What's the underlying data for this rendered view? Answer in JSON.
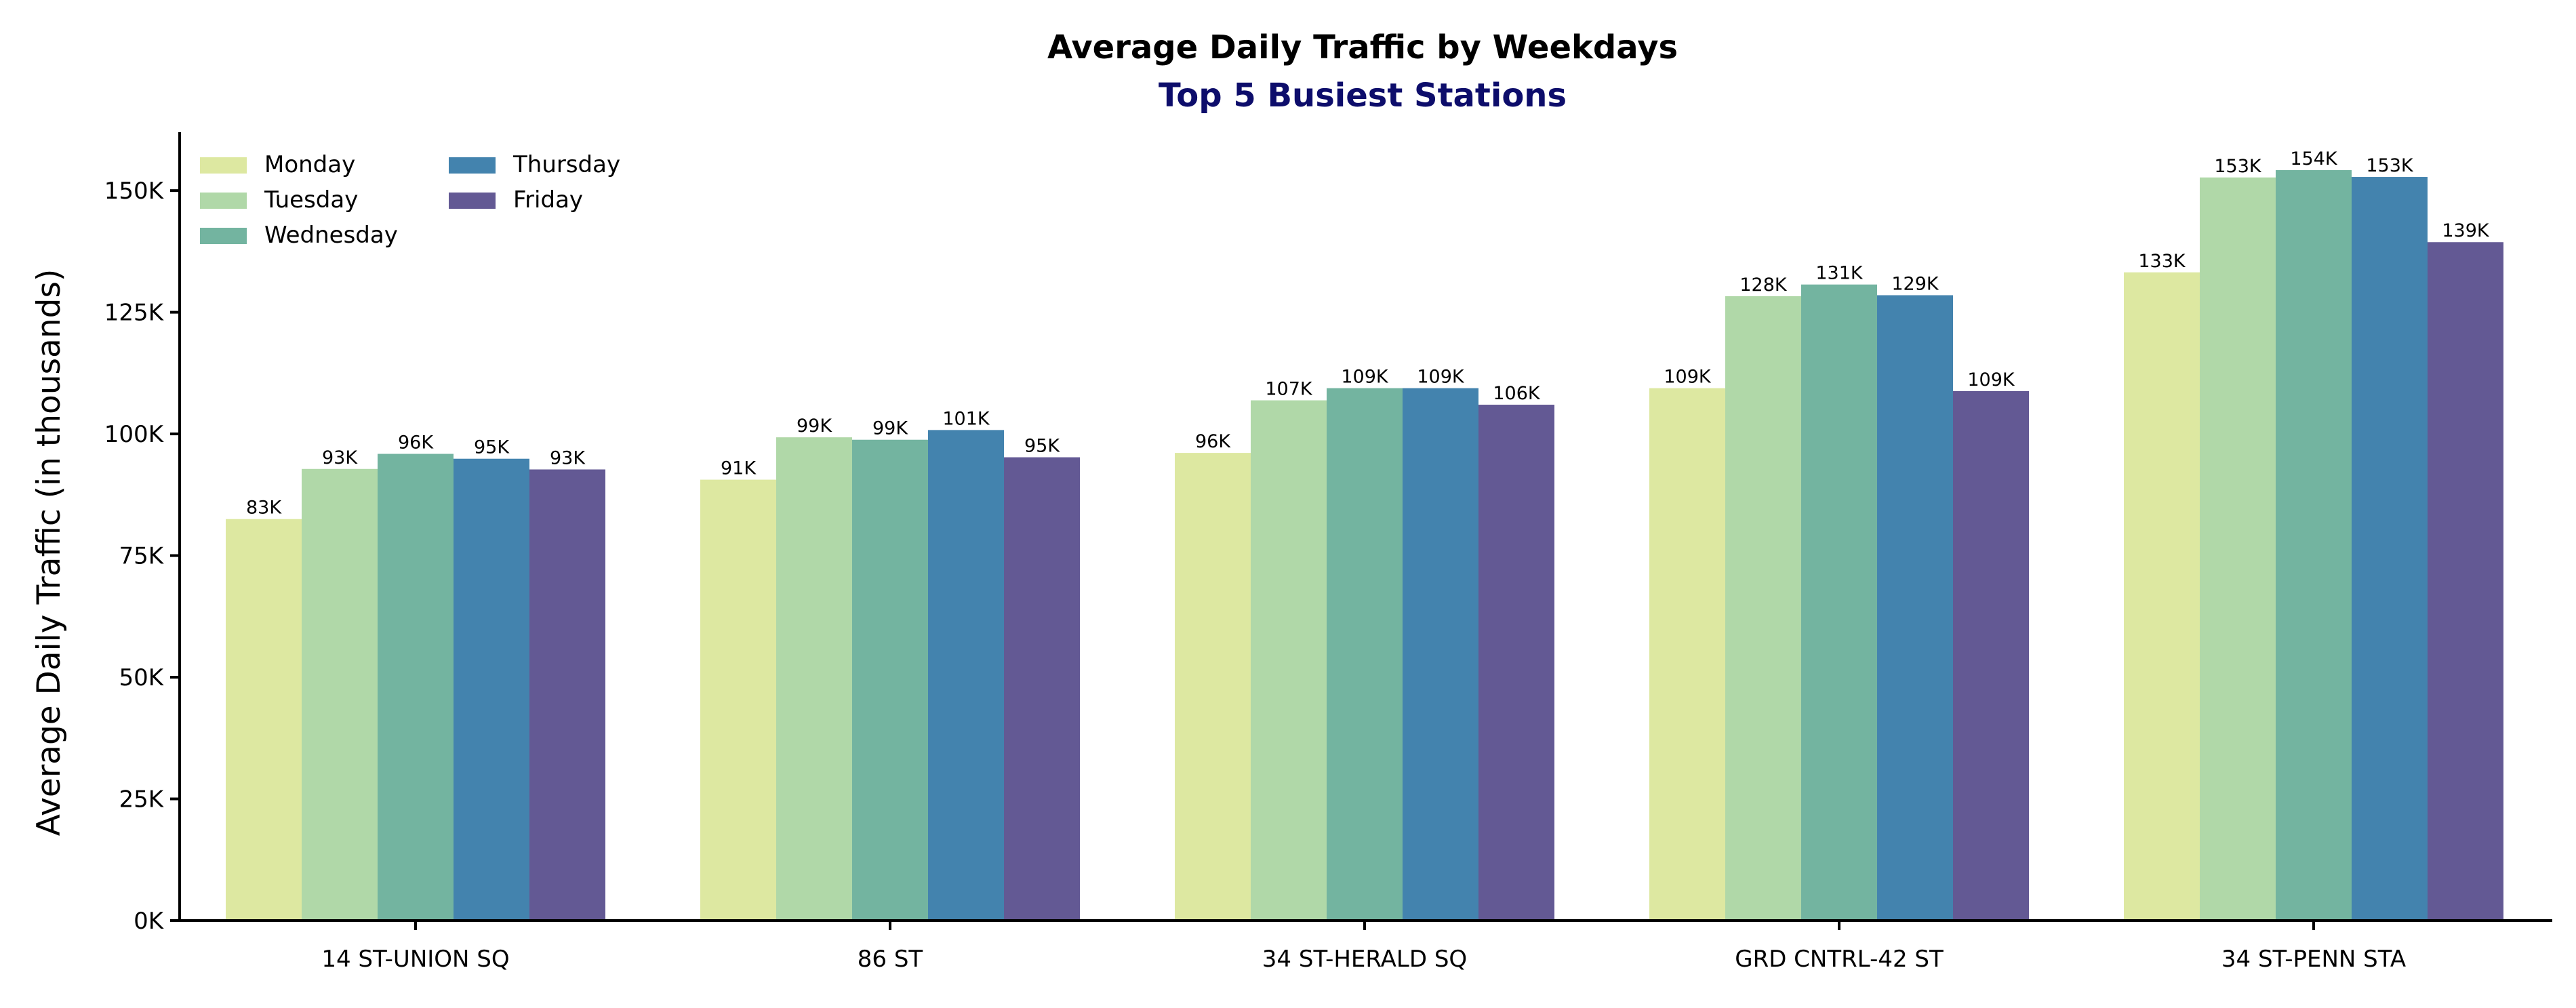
{
  "chart_data": {
    "type": "bar",
    "title": "Average Daily Traffic by Weekdays",
    "subtitle": "Top 5 Busiest Stations",
    "subtitle_color": "#0d0d6b",
    "xlabel": "",
    "ylabel": "Average Daily Traffic (in thousands)",
    "ylim": [
      0,
      162
    ],
    "yticks": [
      0,
      25,
      50,
      75,
      100,
      125,
      150
    ],
    "ytick_labels": [
      "0K",
      "25K",
      "50K",
      "75K",
      "100K",
      "125K",
      "150K"
    ],
    "categories": [
      "14 ST-UNION SQ",
      "86 ST",
      "34 ST-HERALD SQ",
      "GRD CNTRL-42 ST",
      "34 ST-PENN STA"
    ],
    "series": [
      {
        "name": "Monday",
        "color": "#dde8a1",
        "values": [
          82.5,
          90.6,
          96.1,
          109.4,
          133.2
        ],
        "labels": [
          "83K",
          "91K",
          "96K",
          "109K",
          "133K"
        ]
      },
      {
        "name": "Tuesday",
        "color": "#b0d8a8",
        "values": [
          92.8,
          99.3,
          106.9,
          128.3,
          152.7
        ],
        "labels": [
          "93K",
          "99K",
          "107K",
          "128K",
          "153K"
        ]
      },
      {
        "name": "Wednesday",
        "color": "#73b4a0",
        "values": [
          95.9,
          98.8,
          109.4,
          130.7,
          154.2
        ],
        "labels": [
          "96K",
          "99K",
          "109K",
          "131K",
          "154K"
        ]
      },
      {
        "name": "Thursday",
        "color": "#4383ae",
        "values": [
          94.9,
          100.8,
          109.4,
          128.5,
          152.8
        ],
        "labels": [
          "95K",
          "101K",
          "109K",
          "129K",
          "153K"
        ]
      },
      {
        "name": "Friday",
        "color": "#635994",
        "values": [
          92.7,
          95.2,
          106.0,
          108.8,
          139.4
        ],
        "labels": [
          "93K",
          "95K",
          "106K",
          "109K",
          "139K"
        ]
      }
    ],
    "legend_position": "upper-left",
    "legend_columns": 2,
    "grid": false
  }
}
